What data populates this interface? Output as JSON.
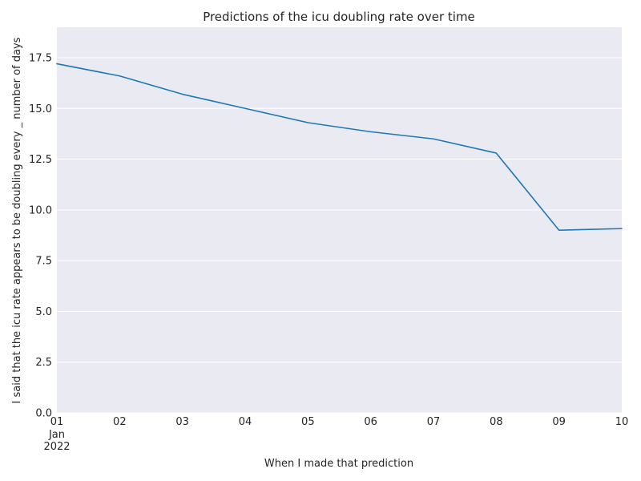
{
  "chart_data": {
    "type": "line",
    "title": "Predictions of the icu doubling rate over time",
    "xlabel": "When I made that prediction",
    "ylabel": "I said that the icu rate appears to be doubling every _ number of days",
    "x": [
      "2022-01-01",
      "2022-01-02",
      "2022-01-03",
      "2022-01-04",
      "2022-01-05",
      "2022-01-06",
      "2022-01-07",
      "2022-01-08",
      "2022-01-09",
      "2022-01-10"
    ],
    "x_tick_labels": [
      "01",
      "02",
      "03",
      "04",
      "05",
      "06",
      "07",
      "08",
      "09",
      "10"
    ],
    "x_tick_sublabels": [
      "Jan",
      "2022"
    ],
    "series": [
      {
        "values": [
          17.2,
          16.6,
          15.7,
          15.0,
          14.3,
          13.85,
          13.5,
          12.8,
          9.0,
          9.08
        ],
        "color": "#1f77b4"
      }
    ],
    "ylim": [
      0,
      19
    ],
    "y_ticks": [
      0.0,
      2.5,
      5.0,
      7.5,
      10.0,
      12.5,
      15.0,
      17.5
    ],
    "y_tick_labels": [
      "0.0",
      "2.5",
      "5.0",
      "7.5",
      "10.0",
      "12.5",
      "15.0",
      "17.5"
    ],
    "grid": true,
    "style": {
      "background": "#eaeaf2",
      "grid_color": "#ffffff",
      "line_color": "#1f77b4"
    }
  }
}
